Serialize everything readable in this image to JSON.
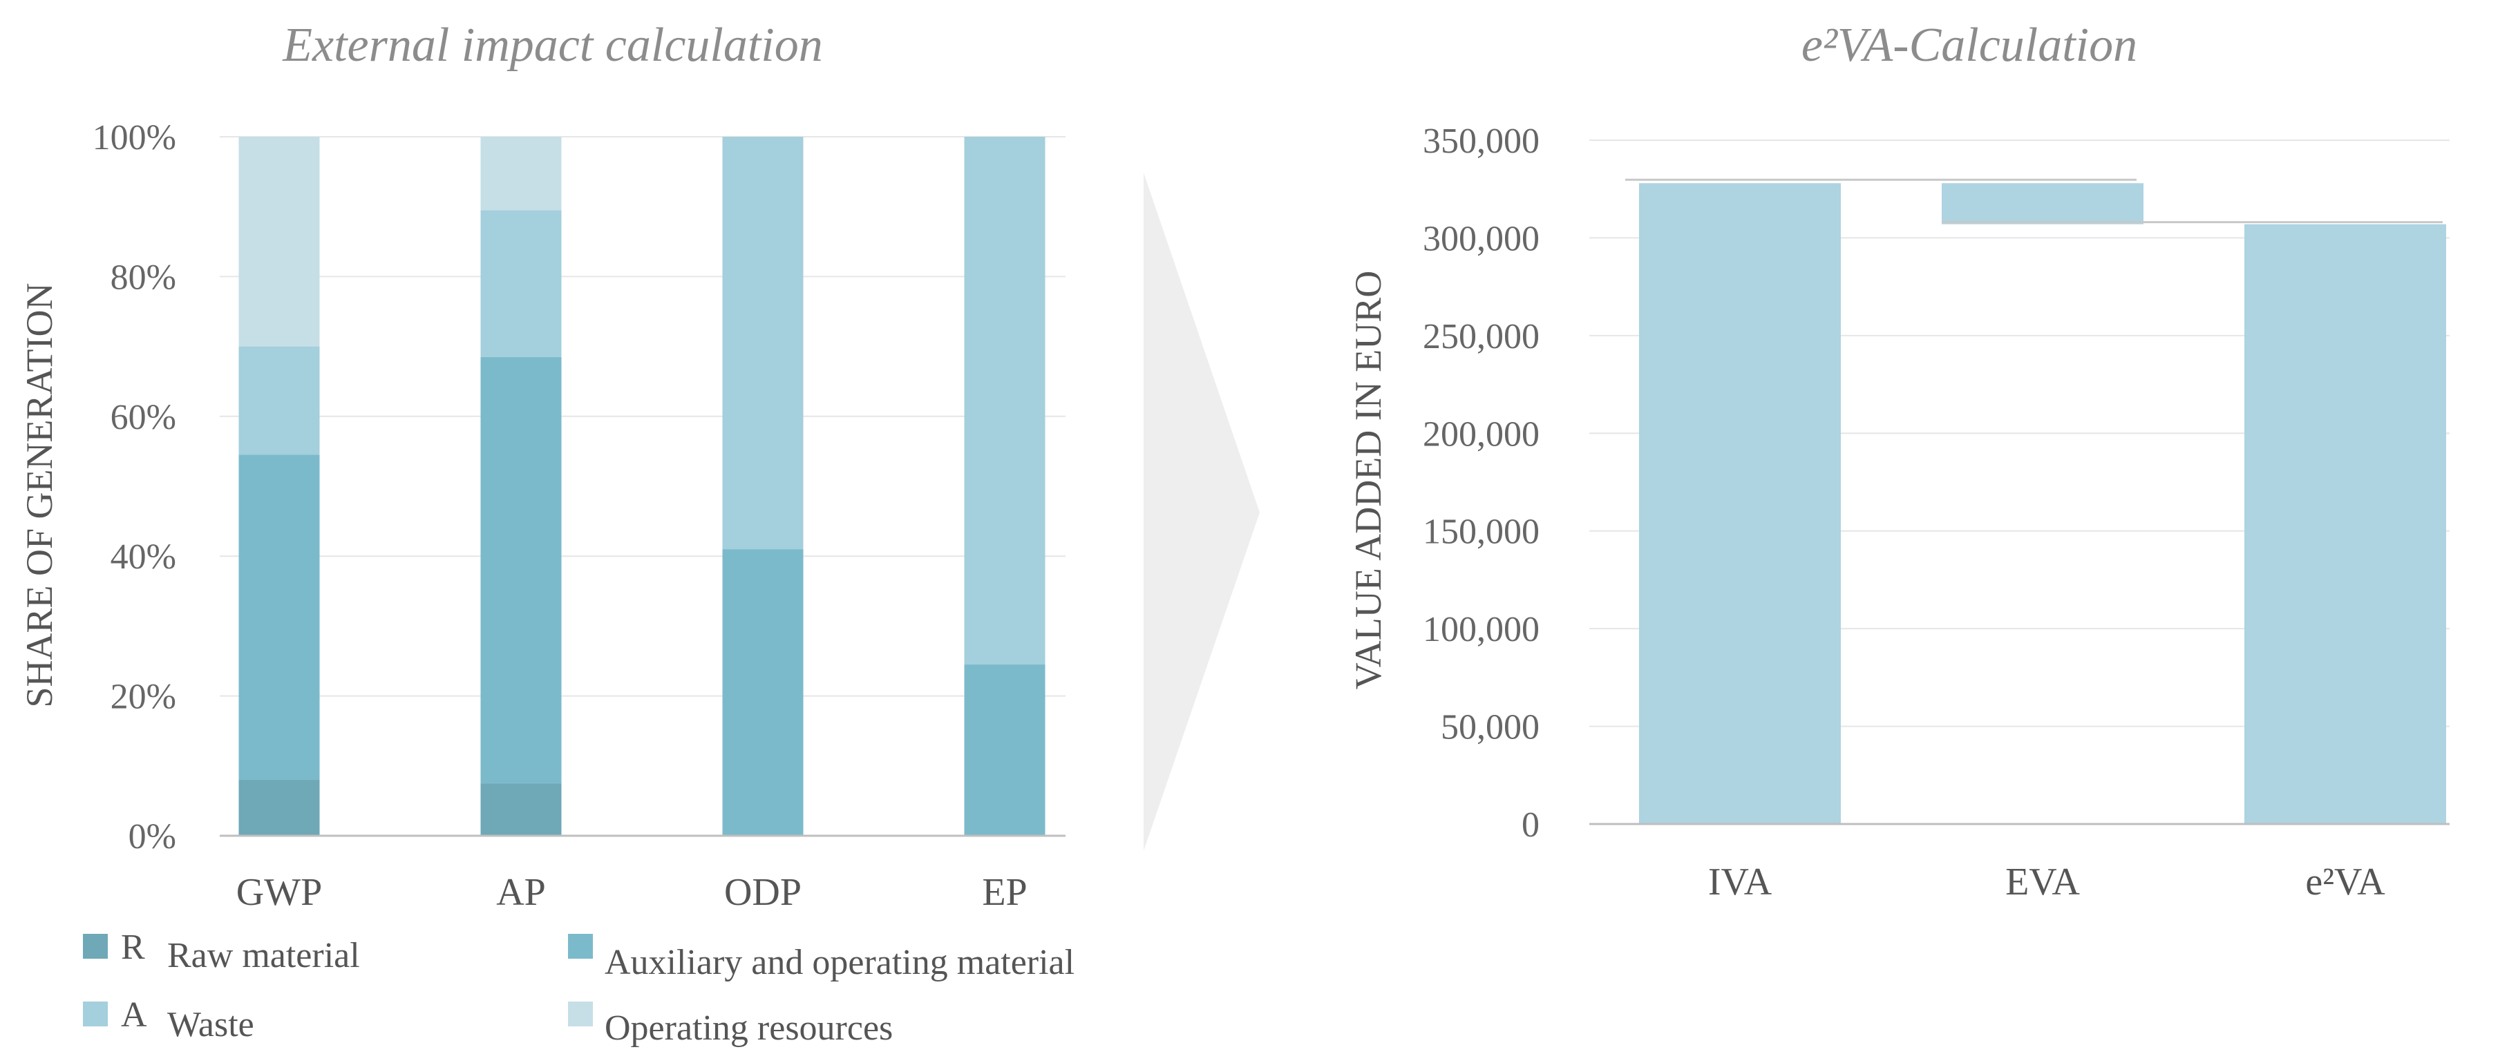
{
  "chart_data": [
    {
      "type": "bar",
      "stacked": true,
      "title": "External impact calculation",
      "xlabel": "",
      "ylabel": "SHARE OF GENERATION",
      "ylim": [
        0,
        100
      ],
      "yticks": [
        "0%",
        "20%",
        "40%",
        "60%",
        "80%",
        "100%"
      ],
      "categories": [
        "GWP",
        "AP",
        "ODP",
        "EP"
      ],
      "series": [
        {
          "name": "Raw material",
          "marker": "R",
          "color": "#6fa8b7",
          "values": [
            8,
            7.5,
            0,
            0
          ]
        },
        {
          "name": "Auxiliary and operating material",
          "marker": "",
          "color": "#7bbacb",
          "values": [
            46.5,
            61,
            41,
            24.5
          ]
        },
        {
          "name": "Waste",
          "marker": "A",
          "color": "#a4cfdc",
          "values": [
            15.5,
            21,
            59,
            75.5
          ]
        },
        {
          "name": "Operating resources",
          "marker": "",
          "color": "#c6dfe7",
          "values": [
            30,
            10.5,
            0,
            0
          ]
        }
      ],
      "grid": true,
      "legend": "bottom"
    },
    {
      "type": "bar",
      "subtype": "waterfall",
      "title": "e²VA-Calculation",
      "xlabel": "",
      "ylabel": "VALUE ADDED IN EURO",
      "ylim": [
        0,
        350000
      ],
      "yticks": [
        "0",
        "50,000",
        "100,000",
        "150,000",
        "200,000",
        "250,000",
        "300,000",
        "350,000"
      ],
      "categories": [
        "IVA",
        "EVA",
        "e²VA"
      ],
      "bars": [
        {
          "label": "IVA",
          "low": 0,
          "high": 328000
        },
        {
          "label": "EVA",
          "low": 307000,
          "high": 328000
        },
        {
          "label": "e²VA",
          "low": 0,
          "high": 307000
        }
      ],
      "color": "#aed3e1",
      "grid": true
    }
  ]
}
